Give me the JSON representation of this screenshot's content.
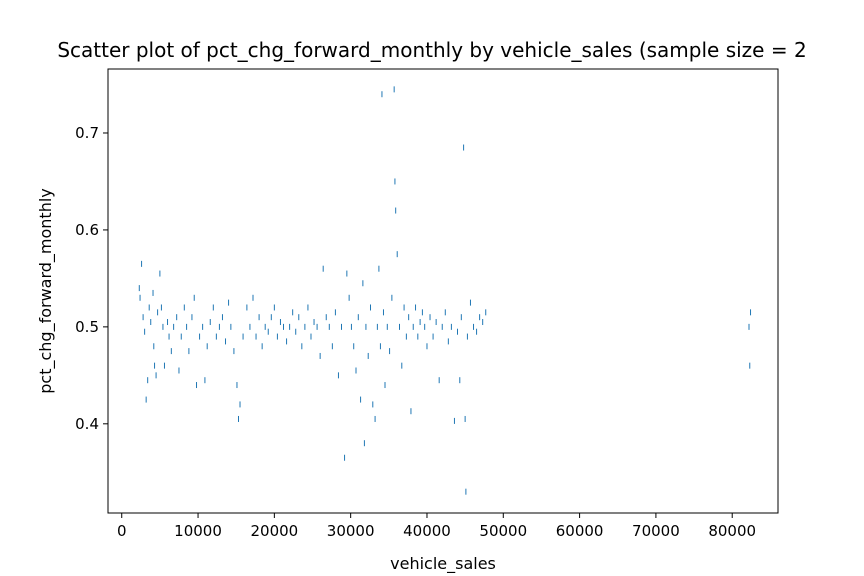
{
  "chart_data": {
    "type": "scatter",
    "title": "Scatter plot of pct_chg_forward_monthly by vehicle_sales (sample size = 2",
    "xlabel": "vehicle_sales",
    "ylabel": "pct_chg_forward_monthly",
    "xlim": [
      -1800,
      86000
    ],
    "ylim": [
      0.308,
      0.766
    ],
    "x_ticks": [
      0,
      10000,
      20000,
      30000,
      40000,
      50000,
      60000,
      70000,
      80000
    ],
    "y_ticks": [
      0.4,
      0.5,
      0.6,
      0.7
    ],
    "y_tick_labels": [
      "0.4",
      "0.5",
      "0.6",
      "0.7"
    ],
    "grid": false,
    "legend": "none",
    "marker": "|",
    "color": "#1f77b4",
    "series": [
      {
        "points": [
          [
            2300,
            0.54
          ],
          [
            2400,
            0.53
          ],
          [
            2600,
            0.565
          ],
          [
            2800,
            0.51
          ],
          [
            3000,
            0.495
          ],
          [
            3200,
            0.425
          ],
          [
            3400,
            0.445
          ],
          [
            3600,
            0.52
          ],
          [
            3800,
            0.505
          ],
          [
            4100,
            0.535
          ],
          [
            4200,
            0.48
          ],
          [
            4300,
            0.46
          ],
          [
            4500,
            0.45
          ],
          [
            4700,
            0.515
          ],
          [
            5000,
            0.555
          ],
          [
            5200,
            0.52
          ],
          [
            5400,
            0.5
          ],
          [
            5600,
            0.46
          ],
          [
            6000,
            0.505
          ],
          [
            6200,
            0.49
          ],
          [
            6500,
            0.475
          ],
          [
            6800,
            0.5
          ],
          [
            7200,
            0.51
          ],
          [
            7500,
            0.455
          ],
          [
            7800,
            0.49
          ],
          [
            8200,
            0.52
          ],
          [
            8500,
            0.5
          ],
          [
            8800,
            0.475
          ],
          [
            9200,
            0.51
          ],
          [
            9500,
            0.53
          ],
          [
            9800,
            0.44
          ],
          [
            10200,
            0.49
          ],
          [
            10600,
            0.5
          ],
          [
            10900,
            0.445
          ],
          [
            11200,
            0.48
          ],
          [
            11600,
            0.505
          ],
          [
            12000,
            0.52
          ],
          [
            12400,
            0.49
          ],
          [
            12800,
            0.5
          ],
          [
            13200,
            0.51
          ],
          [
            13600,
            0.485
          ],
          [
            14000,
            0.525
          ],
          [
            14300,
            0.5
          ],
          [
            14700,
            0.475
          ],
          [
            15100,
            0.44
          ],
          [
            15300,
            0.405
          ],
          [
            15500,
            0.42
          ],
          [
            15900,
            0.49
          ],
          [
            16400,
            0.52
          ],
          [
            16800,
            0.5
          ],
          [
            17200,
            0.53
          ],
          [
            17600,
            0.49
          ],
          [
            18000,
            0.51
          ],
          [
            18400,
            0.48
          ],
          [
            18800,
            0.5
          ],
          [
            19200,
            0.495
          ],
          [
            19600,
            0.51
          ],
          [
            20000,
            0.52
          ],
          [
            20400,
            0.49
          ],
          [
            20800,
            0.505
          ],
          [
            21200,
            0.5
          ],
          [
            21600,
            0.485
          ],
          [
            22000,
            0.5
          ],
          [
            22400,
            0.515
          ],
          [
            22800,
            0.495
          ],
          [
            23200,
            0.51
          ],
          [
            23600,
            0.48
          ],
          [
            24000,
            0.5
          ],
          [
            24400,
            0.52
          ],
          [
            24800,
            0.49
          ],
          [
            25200,
            0.505
          ],
          [
            25600,
            0.5
          ],
          [
            26000,
            0.47
          ],
          [
            26400,
            0.56
          ],
          [
            26800,
            0.51
          ],
          [
            27200,
            0.5
          ],
          [
            27600,
            0.48
          ],
          [
            28000,
            0.515
          ],
          [
            28400,
            0.45
          ],
          [
            28800,
            0.5
          ],
          [
            29200,
            0.365
          ],
          [
            29500,
            0.555
          ],
          [
            29800,
            0.53
          ],
          [
            30100,
            0.5
          ],
          [
            30400,
            0.48
          ],
          [
            30700,
            0.455
          ],
          [
            31000,
            0.51
          ],
          [
            31300,
            0.425
          ],
          [
            31600,
            0.545
          ],
          [
            31800,
            0.38
          ],
          [
            32000,
            0.5
          ],
          [
            32300,
            0.47
          ],
          [
            32600,
            0.52
          ],
          [
            32900,
            0.42
          ],
          [
            33200,
            0.405
          ],
          [
            33500,
            0.5
          ],
          [
            33700,
            0.56
          ],
          [
            33900,
            0.48
          ],
          [
            34100,
            0.74
          ],
          [
            34300,
            0.515
          ],
          [
            34500,
            0.44
          ],
          [
            34800,
            0.5
          ],
          [
            35100,
            0.475
          ],
          [
            35400,
            0.53
          ],
          [
            35700,
            0.745
          ],
          [
            35800,
            0.65
          ],
          [
            35900,
            0.62
          ],
          [
            36100,
            0.575
          ],
          [
            36400,
            0.5
          ],
          [
            36700,
            0.46
          ],
          [
            37000,
            0.52
          ],
          [
            37300,
            0.49
          ],
          [
            37600,
            0.51
          ],
          [
            37900,
            0.413
          ],
          [
            38200,
            0.5
          ],
          [
            38500,
            0.52
          ],
          [
            38800,
            0.49
          ],
          [
            39100,
            0.505
          ],
          [
            39400,
            0.515
          ],
          [
            39700,
            0.5
          ],
          [
            40000,
            0.48
          ],
          [
            40400,
            0.51
          ],
          [
            40800,
            0.49
          ],
          [
            41200,
            0.505
          ],
          [
            41600,
            0.445
          ],
          [
            42000,
            0.5
          ],
          [
            42400,
            0.515
          ],
          [
            42800,
            0.485
          ],
          [
            43200,
            0.5
          ],
          [
            43600,
            0.403
          ],
          [
            44000,
            0.495
          ],
          [
            44300,
            0.445
          ],
          [
            44500,
            0.51
          ],
          [
            44800,
            0.685
          ],
          [
            45000,
            0.405
          ],
          [
            45100,
            0.33
          ],
          [
            45300,
            0.49
          ],
          [
            45700,
            0.525
          ],
          [
            46100,
            0.5
          ],
          [
            46500,
            0.495
          ],
          [
            46900,
            0.51
          ],
          [
            47300,
            0.505
          ],
          [
            47700,
            0.515
          ],
          [
            82200,
            0.5
          ],
          [
            82300,
            0.46
          ],
          [
            82400,
            0.515
          ]
        ]
      }
    ]
  }
}
